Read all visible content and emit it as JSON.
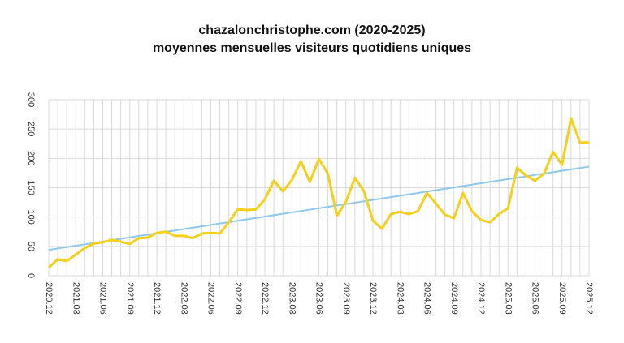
{
  "chart_data": {
    "type": "line",
    "title": "chazalonchristophe.com (2020-2025)",
    "subtitle": "moyennes mensuelles visiteurs quotidiens uniques",
    "categories": [
      "2020.12",
      null,
      null,
      "2021.03",
      null,
      null,
      "2021.06",
      null,
      null,
      "2021.09",
      null,
      null,
      "2021.12",
      null,
      null,
      "2022.03",
      null,
      null,
      "2022.06",
      null,
      null,
      "2022.09",
      null,
      null,
      "2022.12",
      null,
      null,
      "2023.03",
      null,
      null,
      "2023.06",
      null,
      null,
      "2023.09",
      null,
      null,
      "2023.12",
      null,
      null,
      "2024.03",
      null,
      null,
      "2024.06",
      null,
      null,
      "2024.09",
      null,
      null,
      "2024.12",
      null,
      null,
      "2025.03",
      null,
      null,
      "2025.06",
      null,
      null,
      "2025.09",
      null,
      null,
      "2025.12"
    ],
    "series": [
      {
        "color": "#f5cf1a",
        "values": [
          14,
          28,
          25,
          36,
          47,
          55,
          57,
          61,
          58,
          54,
          64,
          65,
          73,
          75,
          68,
          68,
          64,
          72,
          73,
          72,
          91,
          113,
          112,
          113,
          130,
          162,
          144,
          163,
          195,
          160,
          199,
          174,
          102,
          126,
          167,
          144,
          94,
          80,
          105,
          109,
          105,
          110,
          141,
          123,
          104,
          98,
          141,
          110,
          95,
          91,
          105,
          115,
          184,
          171,
          162,
          174,
          211,
          189,
          268,
          227,
          227
        ]
      },
      {
        "color": "#8ec8ec",
        "values": [
          44,
          46.4,
          48.7,
          51.1,
          53.5,
          55.8,
          58.2,
          60.6,
          62.9,
          65.3,
          67.7,
          70.0,
          72.4,
          74.8,
          77.1,
          79.5,
          81.9,
          84.2,
          86.6,
          89.0,
          91.3,
          93.7,
          96.1,
          98.4,
          100.8,
          103.2,
          105.5,
          107.9,
          110.3,
          112.6,
          115.0,
          117.4,
          119.7,
          122.1,
          124.5,
          126.8,
          129.2,
          131.6,
          133.9,
          136.3,
          138.7,
          141.0,
          143.4,
          145.8,
          148.1,
          150.5,
          152.9,
          155.2,
          157.6,
          160.0,
          162.3,
          164.7,
          167.1,
          169.4,
          171.8,
          174.2,
          176.5,
          178.9,
          181.3,
          183.6,
          186.0
        ]
      }
    ],
    "ylim": [
      0,
      300
    ],
    "yticks": [
      0,
      50,
      100,
      150,
      200,
      250,
      300
    ],
    "grid": true
  }
}
